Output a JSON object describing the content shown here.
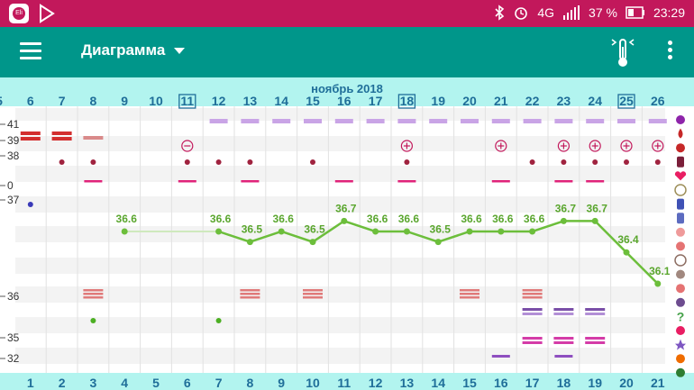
{
  "status_bar": {
    "carrier_icon": "app-icon",
    "play_icon": "play-store-icon",
    "network": "4G",
    "battery": "37 %",
    "time": "23:29"
  },
  "toolbar": {
    "title": "Диаграмма"
  },
  "chart_data": {
    "type": "line",
    "month_label": "ноябрь 2018",
    "dates": [
      "5",
      "6",
      "7",
      "8",
      "9",
      "10",
      "11",
      "12",
      "13",
      "14",
      "15",
      "16",
      "17",
      "18",
      "19",
      "20",
      "21",
      "22",
      "23",
      "24",
      "25",
      "26"
    ],
    "boxed_dates": [
      "11",
      "18",
      "25"
    ],
    "cycle_days": [
      "",
      "1",
      "2",
      "3",
      "4",
      "5",
      "6",
      "7",
      "8",
      "9",
      "10",
      "11",
      "12",
      "13",
      "14",
      "15",
      "16",
      "17",
      "18",
      "19",
      "20",
      "21"
    ],
    "y_labels": [
      "41",
      "39",
      "38",
      "0",
      "37",
      "36",
      "35",
      "32"
    ],
    "temperature": {
      "cycle_days": [
        4,
        7,
        8,
        9,
        10,
        11,
        12,
        13,
        14,
        15,
        16,
        17,
        18,
        19,
        20,
        21
      ],
      "values": [
        36.6,
        36.6,
        36.5,
        36.6,
        36.5,
        36.7,
        36.6,
        36.6,
        36.5,
        36.6,
        36.6,
        36.6,
        36.7,
        36.7,
        36.4,
        36.1
      ],
      "ylim": [
        35.8,
        36.9
      ],
      "color": "#6cbe3b"
    },
    "blue_point_day": 1,
    "rows": {
      "lavender_bar_days": [
        7,
        8,
        9,
        10,
        11,
        12,
        13,
        14,
        15,
        16,
        17,
        18,
        19,
        20,
        21
      ],
      "bleeding_dark_days": [
        1,
        2
      ],
      "bleeding_light_days": [
        3
      ],
      "circle_minus_days": [
        6
      ],
      "circle_plus_days": [
        13,
        16,
        18,
        19,
        20,
        21
      ],
      "dot_days": [
        2,
        3,
        6,
        7,
        8,
        10,
        13,
        17,
        18,
        19,
        20,
        21
      ],
      "pink_dash_days": [
        3,
        6,
        8,
        11,
        13,
        16,
        18,
        19
      ],
      "green_dot_days": [
        3,
        7
      ],
      "pink_stripe_days": [
        3,
        8,
        10,
        15,
        17
      ],
      "purple_bar_days": [
        17,
        18,
        19
      ],
      "magenta_bar_days": [
        17,
        18,
        19
      ],
      "violet_small_days": [
        16,
        18
      ]
    },
    "legend_icons": [
      "flower-icon",
      "drop-icon",
      "drops-icon",
      "page-icon",
      "heart-icon",
      "smile-icon",
      "pill-icon",
      "bottle-icon",
      "swirl-icon",
      "swirl-pink-icon",
      "face-icon",
      "pregnant-icon",
      "fetus-icon",
      "couple-icon",
      "question-icon",
      "figure-icon",
      "star-icon",
      "sun-icon",
      "recycle-icon"
    ]
  }
}
